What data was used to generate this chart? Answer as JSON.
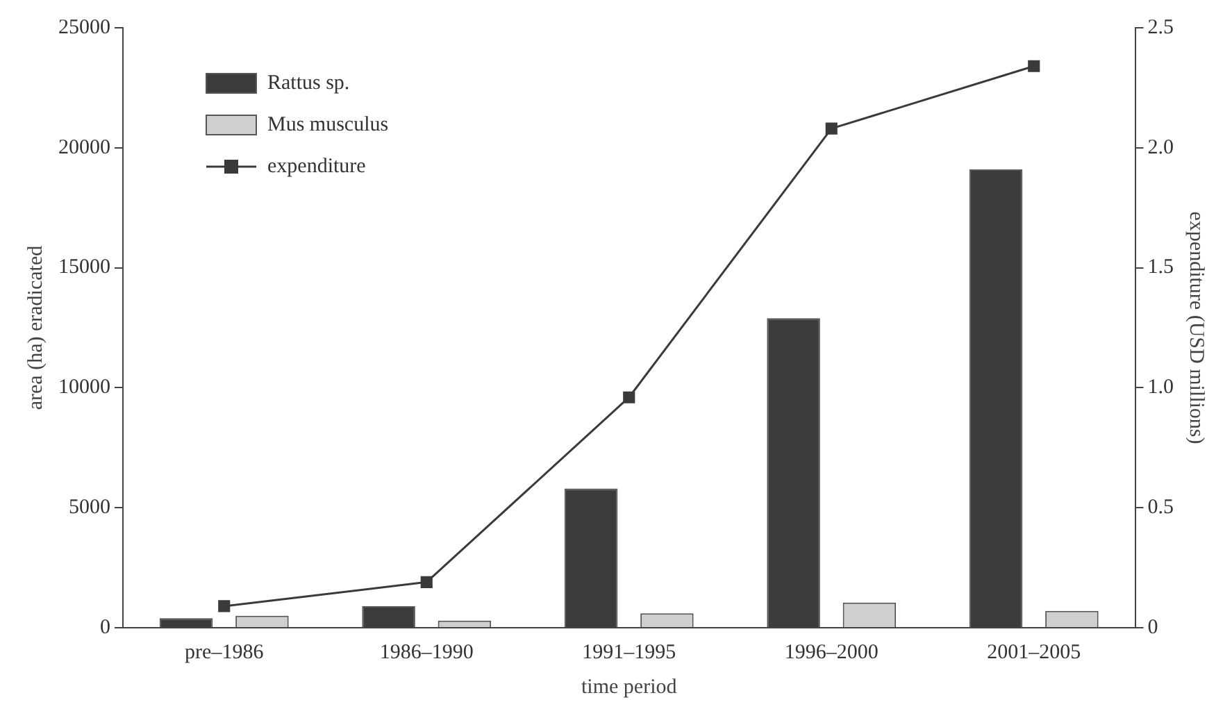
{
  "chart_data": {
    "type": "bar",
    "xlabel": "time period",
    "ylabel": "area (ha) eradicated",
    "y2label": "expenditure (USD millions)",
    "categories": [
      "pre–1986",
      "1986–1990",
      "1991–1995",
      "1996–2000",
      "2001–2005"
    ],
    "series": [
      {
        "name": "Rattus sp.",
        "color": "#3c3c3c",
        "values": [
          400,
          900,
          5800,
          12900,
          19100
        ]
      },
      {
        "name": "Mus musculus",
        "color": "#cfcfcf",
        "values": [
          500,
          300,
          600,
          1050,
          700
        ]
      },
      {
        "name": "expenditure",
        "type": "line",
        "axis": "y2",
        "color": "#3a3a3a",
        "marker": "square",
        "values": [
          0.09,
          0.19,
          0.96,
          2.08,
          2.34
        ]
      }
    ],
    "ylim": [
      0,
      25000
    ],
    "yticks": [
      0,
      5000,
      10000,
      15000,
      20000,
      25000
    ],
    "y2lim": [
      0,
      2.5
    ],
    "y2ticks": [
      0,
      {
        "value": 0.5,
        "label": "0.5"
      },
      {
        "value": 1,
        "label": "1.0"
      },
      {
        "value": 1.5,
        "label": "1.5"
      },
      {
        "value": 2,
        "label": "2.0"
      },
      {
        "value": 2.5,
        "label": "2.5"
      }
    ],
    "legend": "top left",
    "grid": false
  }
}
